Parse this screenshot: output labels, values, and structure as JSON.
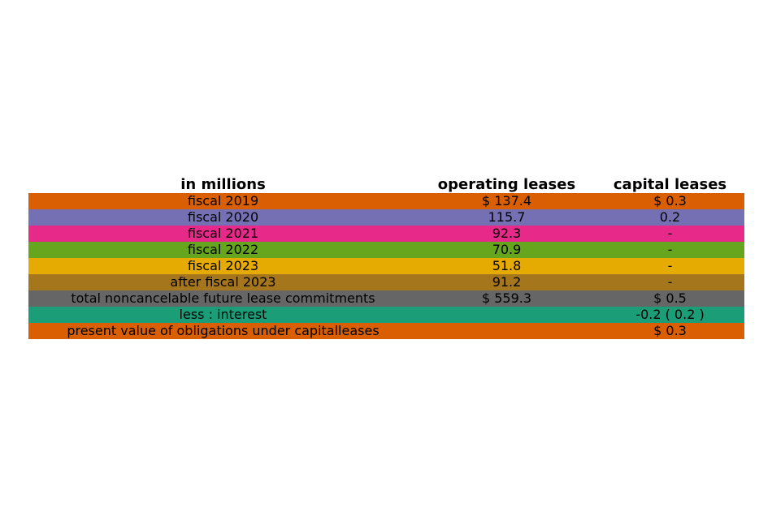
{
  "chart_data": {
    "type": "table",
    "columns": [
      "in millions",
      "operating leases",
      "capital leases"
    ],
    "rows": [
      {
        "label": "fiscal 2019",
        "operating": "$ 137.4",
        "capital": "$ 0.3",
        "color": "#d95f02"
      },
      {
        "label": "fiscal 2020",
        "operating": "115.7",
        "capital": "0.2",
        "color": "#7570b3"
      },
      {
        "label": "fiscal 2021",
        "operating": "92.3",
        "capital": "-",
        "color": "#e7298a"
      },
      {
        "label": "fiscal 2022",
        "operating": "70.9",
        "capital": "-",
        "color": "#66a61e"
      },
      {
        "label": "fiscal 2023",
        "operating": "51.8",
        "capital": "-",
        "color": "#e6ab02"
      },
      {
        "label": "after fiscal 2023",
        "operating": "91.2",
        "capital": "-",
        "color": "#a6761d"
      },
      {
        "label": "total noncancelable future lease commitments",
        "operating": "$ 559.3",
        "capital": "$ 0.5",
        "color": "#666666"
      },
      {
        "label": "less : interest",
        "operating": "",
        "capital": "-0.2 ( 0.2 )",
        "color": "#1b9e77"
      },
      {
        "label": "present value of obligations under capitalleases",
        "operating": "",
        "capital": "$ 0.3",
        "color": "#d95f02"
      }
    ]
  }
}
